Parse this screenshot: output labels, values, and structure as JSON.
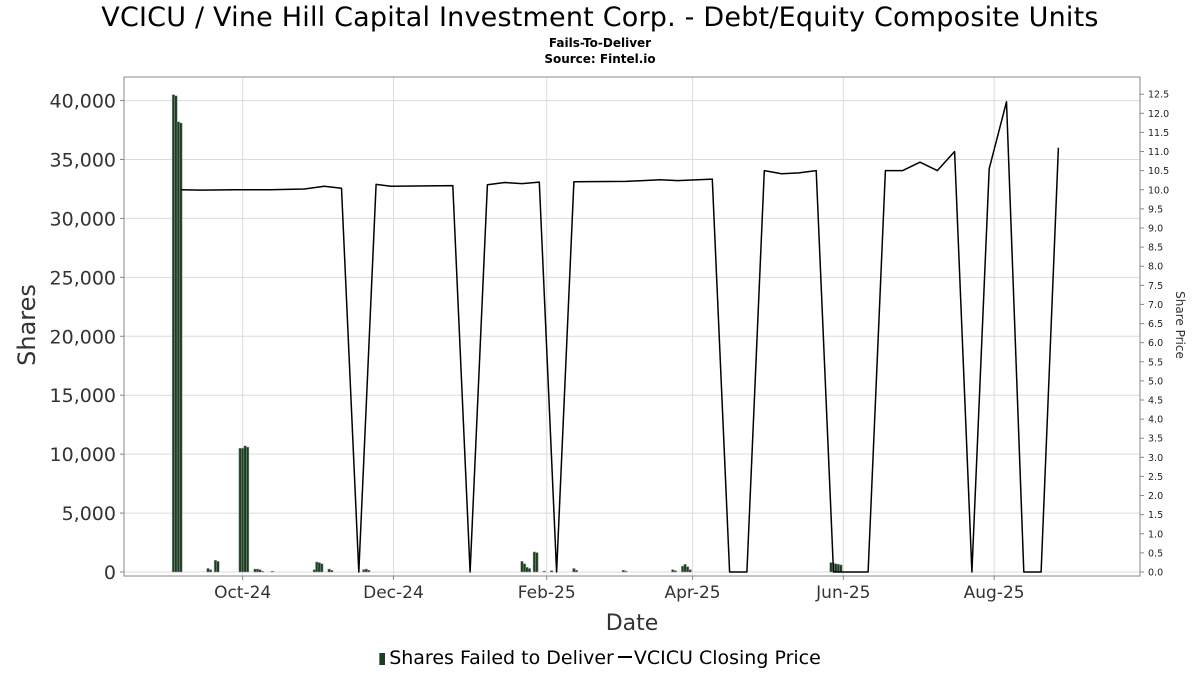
{
  "header": {
    "title": "VCICU / Vine Hill Capital Investment Corp. - Debt/Equity Composite Units",
    "subtitle1": "Fails-To-Deliver",
    "subtitle2": "Source: Fintel.io"
  },
  "legend": {
    "bars_label": "Shares Failed to Deliver",
    "line_label": "VCICU Closing Price"
  },
  "chart_data": {
    "type": "bar",
    "x_range": [
      "2024-08-14",
      "2025-09-29"
    ],
    "xlabel": "Date",
    "ylabel": "Shares",
    "y2label": "Share Price",
    "grid": true,
    "legend_position": "bottom",
    "x_ticks": [
      {
        "date": "2024-10-01",
        "label": "Oct-24"
      },
      {
        "date": "2024-12-01",
        "label": "Dec-24"
      },
      {
        "date": "2025-02-01",
        "label": "Feb-25"
      },
      {
        "date": "2025-04-01",
        "label": "Apr-25"
      },
      {
        "date": "2025-06-01",
        "label": "Jun-25"
      },
      {
        "date": "2025-08-01",
        "label": "Aug-25"
      }
    ],
    "y_left": {
      "min": 0,
      "max": 42000,
      "ticks": [
        0,
        5000,
        10000,
        15000,
        20000,
        25000,
        30000,
        35000,
        40000
      ],
      "tick_labels": [
        "0",
        "5,000",
        "10,000",
        "15,000",
        "20,000",
        "25,000",
        "30,000",
        "35,000",
        "40,000"
      ]
    },
    "y_right": {
      "min": 0,
      "max": 12.95,
      "ticks": [
        0,
        0.5,
        1,
        1.5,
        2,
        2.5,
        3,
        3.5,
        4,
        4.5,
        5,
        5.5,
        6,
        6.5,
        7,
        7.5,
        8,
        8.5,
        9,
        9.5,
        10,
        10.5,
        11,
        11.5,
        12,
        12.5
      ],
      "tick_labels": [
        "0.0",
        "0.5",
        "1.0",
        "1.5",
        "2.0",
        "2.5",
        "3.0",
        "3.5",
        "4.0",
        "4.5",
        "5.0",
        "5.5",
        "6.0",
        "6.5",
        "7.0",
        "7.5",
        "8.0",
        "8.5",
        "9.0",
        "9.5",
        "10.0",
        "10.5",
        "11.0",
        "11.5",
        "12.0",
        "12.5"
      ]
    },
    "colors": {
      "bar": "#1a4020",
      "bar_edge": "#9a9a9a",
      "line": "#000000"
    },
    "series": [
      {
        "name": "Shares Failed to Deliver",
        "type": "bar",
        "points": [
          [
            "2024-09-03",
            40500
          ],
          [
            "2024-09-04",
            40400
          ],
          [
            "2024-09-05",
            38200
          ],
          [
            "2024-09-06",
            38100
          ],
          [
            "2024-09-17",
            300
          ],
          [
            "2024-09-18",
            200
          ],
          [
            "2024-09-20",
            1000
          ],
          [
            "2024-09-21",
            900
          ],
          [
            "2024-09-30",
            10500
          ],
          [
            "2024-10-01",
            10500
          ],
          [
            "2024-10-02",
            10700
          ],
          [
            "2024-10-03",
            10600
          ],
          [
            "2024-10-06",
            250
          ],
          [
            "2024-10-07",
            250
          ],
          [
            "2024-10-08",
            200
          ],
          [
            "2024-10-09",
            60
          ],
          [
            "2024-10-13",
            60
          ],
          [
            "2024-10-30",
            200
          ],
          [
            "2024-10-31",
            850
          ],
          [
            "2024-11-01",
            800
          ],
          [
            "2024-11-02",
            700
          ],
          [
            "2024-11-05",
            250
          ],
          [
            "2024-11-06",
            150
          ],
          [
            "2024-11-19",
            200
          ],
          [
            "2024-11-20",
            250
          ],
          [
            "2024-11-21",
            150
          ],
          [
            "2025-01-22",
            900
          ],
          [
            "2025-01-23",
            700
          ],
          [
            "2025-01-24",
            400
          ],
          [
            "2025-01-25",
            300
          ],
          [
            "2025-01-27",
            1700
          ],
          [
            "2025-01-28",
            1650
          ],
          [
            "2025-01-31",
            80
          ],
          [
            "2025-02-03",
            120
          ],
          [
            "2025-02-12",
            300
          ],
          [
            "2025-02-13",
            150
          ],
          [
            "2025-03-04",
            150
          ],
          [
            "2025-03-05",
            80
          ],
          [
            "2025-03-24",
            200
          ],
          [
            "2025-03-25",
            120
          ],
          [
            "2025-03-28",
            500
          ],
          [
            "2025-03-29",
            650
          ],
          [
            "2025-03-30",
            450
          ],
          [
            "2025-03-31",
            200
          ],
          [
            "2025-05-27",
            800
          ],
          [
            "2025-05-28",
            750
          ],
          [
            "2025-05-29",
            700
          ],
          [
            "2025-05-30",
            650
          ],
          [
            "2025-05-31",
            600
          ]
        ]
      },
      {
        "name": "VCICU Closing Price",
        "type": "line",
        "points": [
          [
            "2024-09-06",
            10.0
          ],
          [
            "2024-09-14",
            9.99
          ],
          [
            "2024-09-28",
            10.0
          ],
          [
            "2024-10-12",
            10.0
          ],
          [
            "2024-10-26",
            10.02
          ],
          [
            "2024-11-03",
            10.09
          ],
          [
            "2024-11-10",
            10.04
          ],
          [
            "2024-11-17",
            0.0
          ],
          [
            "2024-11-24",
            10.14
          ],
          [
            "2024-11-30",
            10.09
          ],
          [
            "2024-12-25",
            10.11
          ],
          [
            "2025-01-01",
            0.0
          ],
          [
            "2025-01-08",
            10.13
          ],
          [
            "2025-01-15",
            10.19
          ],
          [
            "2025-01-22",
            10.16
          ],
          [
            "2025-01-29",
            10.2
          ],
          [
            "2025-02-05",
            0.0
          ],
          [
            "2025-02-12",
            10.21
          ],
          [
            "2025-03-05",
            10.22
          ],
          [
            "2025-03-19",
            10.26
          ],
          [
            "2025-03-26",
            10.24
          ],
          [
            "2025-04-09",
            10.28
          ],
          [
            "2025-04-16",
            0.0
          ],
          [
            "2025-04-23",
            0.0
          ],
          [
            "2025-04-30",
            10.5
          ],
          [
            "2025-05-07",
            10.42
          ],
          [
            "2025-05-14",
            10.44
          ],
          [
            "2025-05-21",
            10.5
          ],
          [
            "2025-05-28",
            0.0
          ],
          [
            "2025-06-04",
            0.0
          ],
          [
            "2025-06-11",
            0.0
          ],
          [
            "2025-06-18",
            10.5
          ],
          [
            "2025-06-25",
            10.5
          ],
          [
            "2025-07-02",
            10.72
          ],
          [
            "2025-07-09",
            10.5
          ],
          [
            "2025-07-16",
            11.0
          ],
          [
            "2025-07-23",
            0.0
          ],
          [
            "2025-07-30",
            10.55
          ],
          [
            "2025-08-06",
            12.3
          ],
          [
            "2025-08-13",
            0.0
          ],
          [
            "2025-08-20",
            0.0
          ],
          [
            "2025-08-27",
            11.1
          ]
        ]
      }
    ]
  }
}
